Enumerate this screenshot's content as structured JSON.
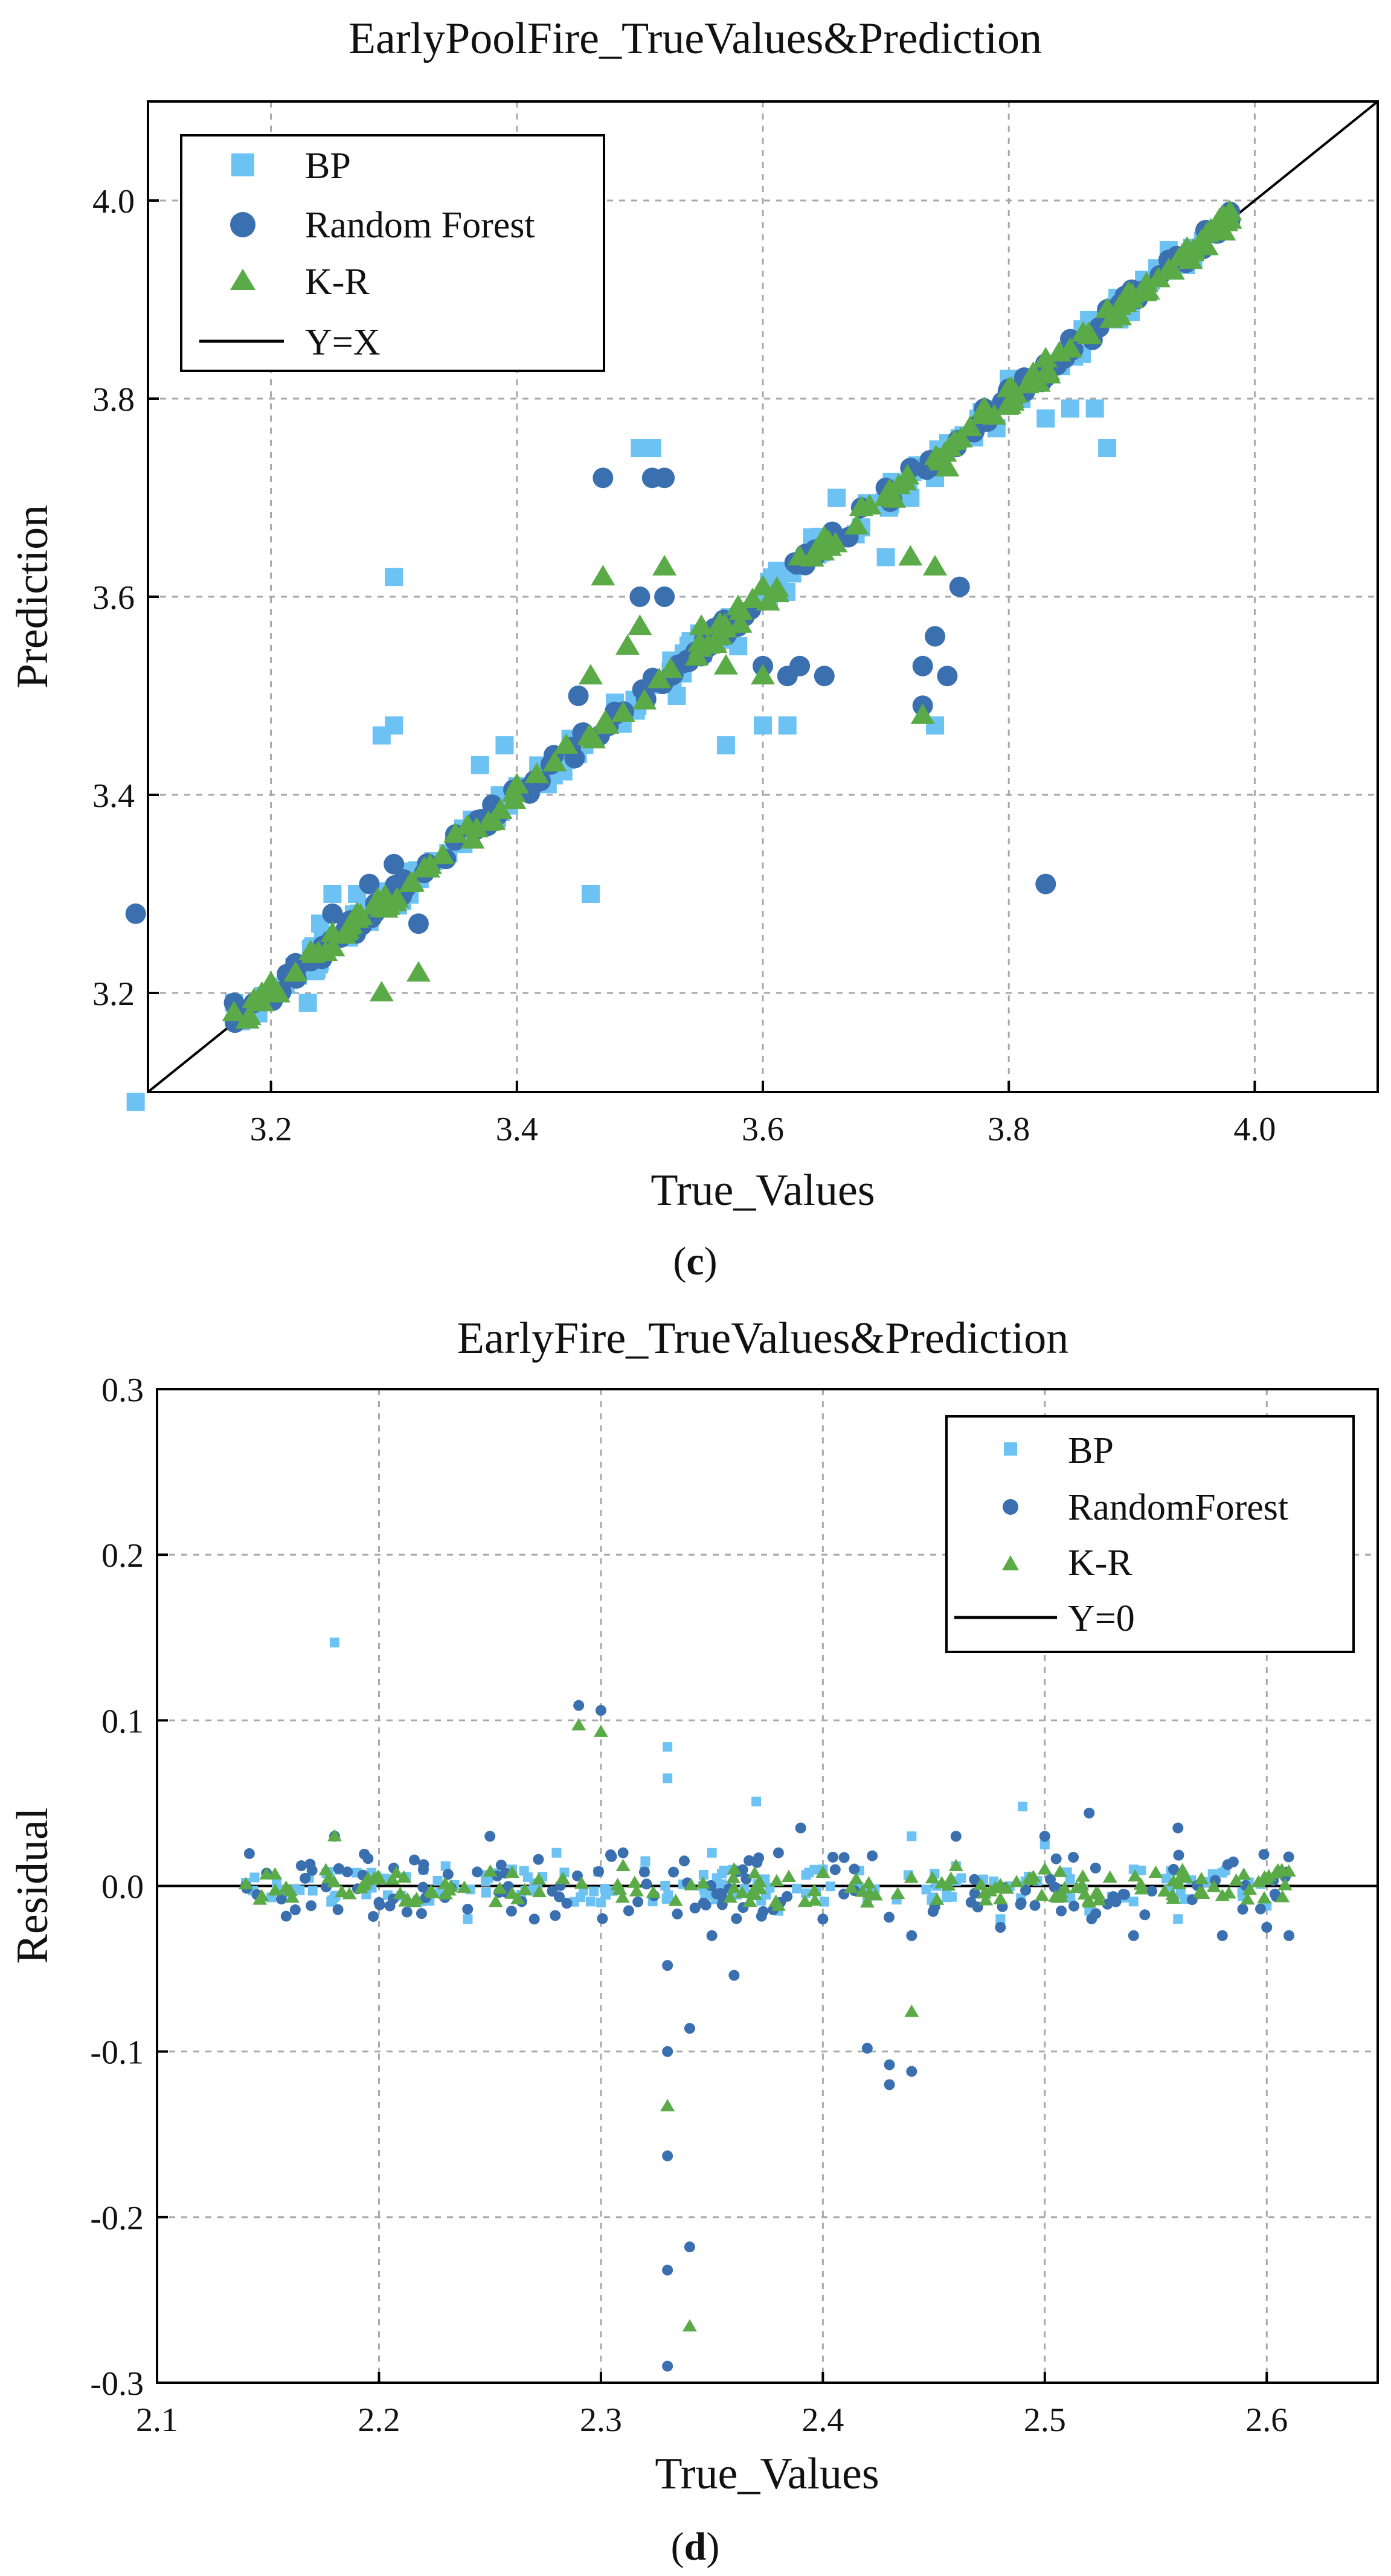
{
  "chart_data": [
    {
      "id": "c",
      "type": "scatter",
      "title": "EarlyPoolFire_TrueValues&Prediction",
      "xlabel": "True_Values",
      "ylabel": "Prediction",
      "caption_letter": "c",
      "xlim": [
        3.1,
        4.1
      ],
      "ylim": [
        3.1,
        4.1
      ],
      "xticks": [
        3.2,
        3.4,
        3.6,
        3.8,
        4.0
      ],
      "yticks": [
        3.2,
        3.4,
        3.6,
        3.8,
        4.0
      ],
      "xtick_labels": [
        "3.2",
        "3.4",
        "3.6",
        "3.8",
        "4.0"
      ],
      "ytick_labels": [
        "3.2",
        "3.4",
        "3.6",
        "3.8",
        "4.0"
      ],
      "grid": true,
      "legend_position": "top-left",
      "reference_line": {
        "name": "Y=X",
        "kind": "identity"
      },
      "series": [
        {
          "name": "BP",
          "marker": "square",
          "color": "#6cc2f2",
          "points": [
            [
              3.17,
              3.19
            ],
            [
              3.2,
              3.2
            ],
            [
              3.23,
              3.19
            ],
            [
              3.24,
              3.27
            ],
            [
              3.25,
              3.3
            ],
            [
              3.27,
              3.3
            ],
            [
              3.29,
              3.46
            ],
            [
              3.3,
              3.47
            ],
            [
              3.3,
              3.62
            ],
            [
              3.37,
              3.43
            ],
            [
              3.39,
              3.45
            ],
            [
              3.46,
              3.3
            ],
            [
              3.48,
              3.48
            ],
            [
              3.5,
              3.75
            ],
            [
              3.51,
              3.75
            ],
            [
              3.53,
              3.5
            ],
            [
              3.57,
              3.45
            ],
            [
              3.58,
              3.55
            ],
            [
              3.6,
              3.47
            ],
            [
              3.62,
              3.47
            ],
            [
              3.64,
              3.66
            ],
            [
              3.66,
              3.7
            ],
            [
              3.68,
              3.67
            ],
            [
              3.7,
              3.64
            ],
            [
              3.72,
              3.7
            ],
            [
              3.74,
              3.72
            ],
            [
              3.76,
              3.76
            ],
            [
              3.8,
              3.82
            ],
            [
              3.83,
              3.78
            ],
            [
              3.85,
              3.79
            ],
            [
              3.86,
              3.87
            ],
            [
              3.88,
              3.75
            ],
            [
              3.89,
              3.88
            ],
            [
              3.91,
              3.92
            ],
            [
              3.93,
              3.95
            ],
            [
              3.95,
              3.94
            ],
            [
              3.97,
              3.97
            ],
            [
              3.09,
              3.09
            ],
            [
              3.87,
              3.79
            ],
            [
              3.79,
              3.77
            ],
            [
              3.74,
              3.47
            ]
          ]
        },
        {
          "name": "Random Forest",
          "marker": "circle",
          "color": "#3a6fb0",
          "points": [
            [
              3.09,
              3.28
            ],
            [
              3.17,
              3.19
            ],
            [
              3.22,
              3.23
            ],
            [
              3.25,
              3.28
            ],
            [
              3.28,
              3.31
            ],
            [
              3.3,
              3.33
            ],
            [
              3.32,
              3.27
            ],
            [
              3.35,
              3.36
            ],
            [
              3.38,
              3.39
            ],
            [
              3.43,
              3.44
            ],
            [
              3.45,
              3.5
            ],
            [
              3.47,
              3.72
            ],
            [
              3.5,
              3.6
            ],
            [
              3.51,
              3.72
            ],
            [
              3.52,
              3.72
            ],
            [
              3.52,
              3.6
            ],
            [
              3.55,
              3.54
            ],
            [
              3.58,
              3.57
            ],
            [
              3.6,
              3.53
            ],
            [
              3.62,
              3.52
            ],
            [
              3.63,
              3.53
            ],
            [
              3.65,
              3.52
            ],
            [
              3.68,
              3.69
            ],
            [
              3.7,
              3.71
            ],
            [
              3.72,
              3.73
            ],
            [
              3.73,
              3.53
            ],
            [
              3.73,
              3.49
            ],
            [
              3.74,
              3.56
            ],
            [
              3.75,
              3.52
            ],
            [
              3.76,
              3.61
            ],
            [
              3.78,
              3.79
            ],
            [
              3.8,
              3.81
            ],
            [
              3.83,
              3.31
            ],
            [
              3.85,
              3.86
            ],
            [
              3.88,
              3.89
            ],
            [
              3.9,
              3.91
            ],
            [
              3.93,
              3.94
            ],
            [
              3.96,
              3.97
            ],
            [
              3.98,
              3.98
            ]
          ]
        },
        {
          "name": "K-R",
          "marker": "triangle",
          "color": "#5aab47",
          "points": [
            [
              3.17,
              3.18
            ],
            [
              3.2,
              3.21
            ],
            [
              3.22,
              3.22
            ],
            [
              3.25,
              3.26
            ],
            [
              3.27,
              3.28
            ],
            [
              3.29,
              3.2
            ],
            [
              3.32,
              3.22
            ],
            [
              3.35,
              3.36
            ],
            [
              3.4,
              3.41
            ],
            [
              3.44,
              3.45
            ],
            [
              3.46,
              3.52
            ],
            [
              3.47,
              3.62
            ],
            [
              3.49,
              3.55
            ],
            [
              3.5,
              3.57
            ],
            [
              3.52,
              3.63
            ],
            [
              3.55,
              3.57
            ],
            [
              3.58,
              3.59
            ],
            [
              3.6,
              3.61
            ],
            [
              3.63,
              3.64
            ],
            [
              3.65,
              3.66
            ],
            [
              3.68,
              3.69
            ],
            [
              3.7,
              3.7
            ],
            [
              3.72,
              3.64
            ],
            [
              3.73,
              3.48
            ],
            [
              3.74,
              3.63
            ],
            [
              3.75,
              3.73
            ],
            [
              3.78,
              3.79
            ],
            [
              3.8,
              3.81
            ],
            [
              3.83,
              3.84
            ],
            [
              3.85,
              3.85
            ],
            [
              3.88,
              3.89
            ],
            [
              3.9,
              3.9
            ],
            [
              3.93,
              3.93
            ],
            [
              3.95,
              3.95
            ],
            [
              3.98,
              3.98
            ],
            [
              3.57,
              3.53
            ],
            [
              3.6,
              3.52
            ]
          ]
        }
      ]
    },
    {
      "id": "d",
      "type": "scatter",
      "title": "EarlyFire_TrueValues&Prediction",
      "xlabel": "True_Values",
      "ylabel": "Residual",
      "caption_letter": "d",
      "xlim": [
        2.1,
        2.65
      ],
      "ylim": [
        -0.3,
        0.3
      ],
      "xticks": [
        2.1,
        2.2,
        2.3,
        2.4,
        2.5,
        2.6
      ],
      "yticks": [
        -0.3,
        -0.2,
        -0.1,
        0.0,
        0.1,
        0.2,
        0.3
      ],
      "xtick_labels": [
        "2.1",
        "2.2",
        "2.3",
        "2.4",
        "2.5",
        "2.6"
      ],
      "ytick_labels": [
        "-0.3",
        "-0.2",
        "-0.1",
        "0.0",
        "0.1",
        "0.2",
        "0.3"
      ],
      "grid": true,
      "legend_position": "top-right",
      "reference_line": {
        "name": "Y=0",
        "kind": "horizontal",
        "y": 0
      },
      "series": [
        {
          "name": "BP",
          "marker": "square",
          "color": "#6cc2f2",
          "points": [
            [
              2.14,
              0.002
            ],
            [
              2.16,
              -0.004
            ],
            [
              2.18,
              0.147
            ],
            [
              2.19,
              0.008
            ],
            [
              2.21,
              -0.006
            ],
            [
              2.23,
              0.012
            ],
            [
              2.24,
              -0.02
            ],
            [
              2.26,
              0.01
            ],
            [
              2.28,
              0.02
            ],
            [
              2.3,
              -0.01
            ],
            [
              2.32,
              0.015
            ],
            [
              2.33,
              0.084
            ],
            [
              2.33,
              0.065
            ],
            [
              2.35,
              0.02
            ],
            [
              2.37,
              0.051
            ],
            [
              2.38,
              -0.015
            ],
            [
              2.4,
              0.01
            ],
            [
              2.42,
              -0.01
            ],
            [
              2.44,
              0.03
            ],
            [
              2.46,
              0.012
            ],
            [
              2.48,
              -0.02
            ],
            [
              2.49,
              0.048
            ],
            [
              2.5,
              0.025
            ],
            [
              2.52,
              -0.015
            ],
            [
              2.54,
              0.01
            ],
            [
              2.56,
              -0.02
            ],
            [
              2.58,
              0.008
            ],
            [
              2.6,
              -0.012
            ]
          ]
        },
        {
          "name": "RandomForest",
          "marker": "circle",
          "color": "#3a6fb0",
          "points": [
            [
              2.14,
              0.0
            ],
            [
              2.18,
              0.03
            ],
            [
              2.2,
              -0.01
            ],
            [
              2.22,
              0.01
            ],
            [
              2.25,
              0.03
            ],
            [
              2.27,
              -0.02
            ],
            [
              2.29,
              0.109
            ],
            [
              2.3,
              0.106
            ],
            [
              2.31,
              0.02
            ],
            [
              2.33,
              -0.048
            ],
            [
              2.33,
              -0.1
            ],
            [
              2.33,
              -0.163
            ],
            [
              2.33,
              -0.232
            ],
            [
              2.33,
              -0.29
            ],
            [
              2.34,
              -0.086
            ],
            [
              2.34,
              -0.218
            ],
            [
              2.35,
              -0.03
            ],
            [
              2.36,
              -0.054
            ],
            [
              2.38,
              0.02
            ],
            [
              2.39,
              0.035
            ],
            [
              2.4,
              -0.02
            ],
            [
              2.42,
              -0.098
            ],
            [
              2.43,
              -0.108
            ],
            [
              2.43,
              -0.12
            ],
            [
              2.44,
              -0.112
            ],
            [
              2.44,
              -0.03
            ],
            [
              2.46,
              0.03
            ],
            [
              2.48,
              -0.025
            ],
            [
              2.5,
              0.03
            ],
            [
              2.52,
              0.044
            ],
            [
              2.54,
              -0.03
            ],
            [
              2.56,
              0.035
            ],
            [
              2.58,
              -0.03
            ],
            [
              2.6,
              -0.025
            ],
            [
              2.61,
              -0.03
            ]
          ]
        },
        {
          "name": "K-R",
          "marker": "triangle",
          "color": "#5aab47",
          "points": [
            [
              2.14,
              0.001
            ],
            [
              2.16,
              -0.003
            ],
            [
              2.18,
              0.03
            ],
            [
              2.2,
              0.004
            ],
            [
              2.23,
              -0.005
            ],
            [
              2.26,
              0.008
            ],
            [
              2.29,
              0.097
            ],
            [
              2.3,
              0.093
            ],
            [
              2.31,
              0.012
            ],
            [
              2.33,
              -0.133
            ],
            [
              2.34,
              -0.266
            ],
            [
              2.36,
              0.01
            ],
            [
              2.38,
              -0.012
            ],
            [
              2.4,
              0.008
            ],
            [
              2.42,
              -0.01
            ],
            [
              2.44,
              -0.076
            ],
            [
              2.46,
              0.012
            ],
            [
              2.48,
              -0.008
            ],
            [
              2.5,
              0.01
            ],
            [
              2.52,
              -0.01
            ],
            [
              2.55,
              0.008
            ],
            [
              2.58,
              -0.006
            ],
            [
              2.6,
              0.004
            ]
          ]
        }
      ]
    }
  ]
}
